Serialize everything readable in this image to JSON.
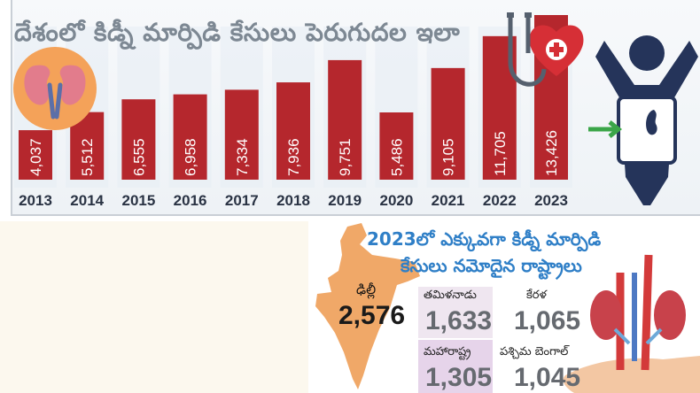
{
  "top": {
    "title": "దేశంలో కిడ్నీ మార్పిడి కేసులు పెరుగుదల ఇలా"
  },
  "chart_data": {
    "type": "bar",
    "title": "దేశంలో కిడ్నీ మార్పిడి కేసులు పెరుగుదల ఇలా",
    "categories": [
      "2013",
      "2014",
      "2015",
      "2016",
      "2017",
      "2018",
      "2019",
      "2020",
      "2021",
      "2022",
      "2023"
    ],
    "values": [
      4037,
      5512,
      6555,
      6958,
      7334,
      7936,
      9751,
      5486,
      9105,
      11705,
      13426
    ],
    "labels": [
      "4,037",
      "5,512",
      "6,555",
      "6,958",
      "7,334",
      "7,936",
      "9,751",
      "5,486",
      "9,105",
      "11,705",
      "13,426"
    ],
    "bar_color": "#b5272d",
    "grid": false,
    "legend": "none"
  },
  "states": {
    "heading_line1": "2023లో ఎక్కువగా కిడ్నీ మార్పిడి",
    "heading_line2": "కేసులు నమోదైన రాష్ట్రాలు",
    "items": [
      {
        "name": "ఢిల్లీ",
        "value": "2,576"
      },
      {
        "name": "తమిళనాడు",
        "value": "1,633"
      },
      {
        "name": "కేరళ",
        "value": "1,065"
      },
      {
        "name": "మహారాష్ట్ర",
        "value": "1,305"
      },
      {
        "name": "పశ్చిమ బెంగాల్",
        "value": "1,045"
      }
    ]
  },
  "colors": {
    "bar": "#b5272d",
    "heading": "#2f7fc7",
    "map": "#f0a868",
    "icon_navy": "#25345a"
  }
}
